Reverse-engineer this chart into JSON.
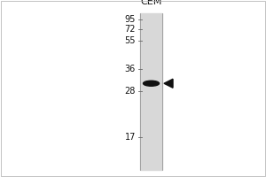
{
  "outer_bg": "#ffffff",
  "lane_color": "#e0e0e0",
  "title": "CEM",
  "title_fontsize": 8,
  "mw_markers": [
    95,
    72,
    55,
    36,
    28,
    17
  ],
  "band_mw": 30.5,
  "band_color": "#111111",
  "arrow_color": "#111111",
  "mw_fontsize": 7,
  "fig_width": 3.0,
  "fig_height": 2.0,
  "dpi": 100
}
